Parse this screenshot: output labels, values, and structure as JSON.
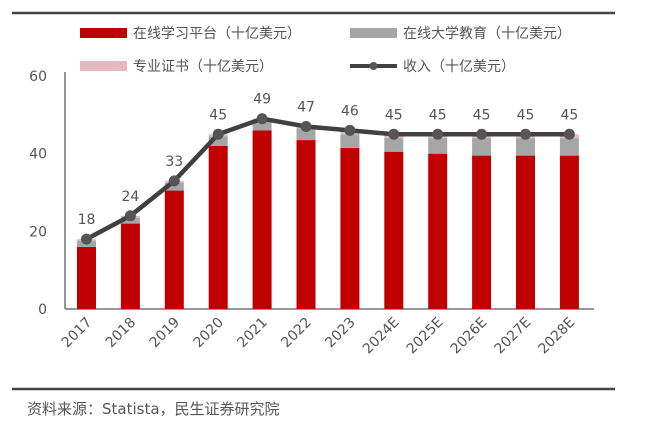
{
  "chart_data": {
    "type": "bar",
    "stacked": true,
    "categories": [
      "2017",
      "2018",
      "2019",
      "2020",
      "2021",
      "2022",
      "2023",
      "2024E",
      "2025E",
      "2026E",
      "2027E",
      "2028E"
    ],
    "series": [
      {
        "name": "在线学习平台（十亿美元）",
        "kind": "bar",
        "color": "#c00000",
        "values": [
          16,
          22,
          30.5,
          42,
          46,
          43.5,
          41.5,
          40.5,
          40,
          39.5,
          39.5,
          39.5
        ]
      },
      {
        "name": "在线大学教育（十亿美元）",
        "kind": "bar",
        "color": "#a6a6a6",
        "values": [
          1.5,
          1.5,
          2,
          2.5,
          2.5,
          3,
          3.5,
          3.5,
          4,
          4.5,
          4.5,
          4.5
        ]
      },
      {
        "name": "专业证书（十亿美元）",
        "kind": "bar",
        "color": "#e6b9c0",
        "values": [
          0.5,
          0.5,
          0.5,
          0.5,
          0.5,
          0.5,
          1,
          1,
          1,
          1,
          1,
          1
        ]
      },
      {
        "name": "收入（十亿美元）",
        "kind": "line",
        "color": "#404040",
        "values": [
          18,
          24,
          33,
          45,
          49,
          47,
          46,
          45,
          45,
          45,
          45,
          45
        ]
      }
    ],
    "data_labels": [
      "18",
      "24",
      "33",
      "45",
      "49",
      "47",
      "46",
      "45",
      "45",
      "45",
      "45",
      "45"
    ],
    "yticks": [
      "0",
      "20",
      "40",
      "60"
    ],
    "ylim": [
      0,
      60
    ],
    "grid": false,
    "legend_placement": "top"
  },
  "source": "资料来源：Statista，民生证券研究院"
}
